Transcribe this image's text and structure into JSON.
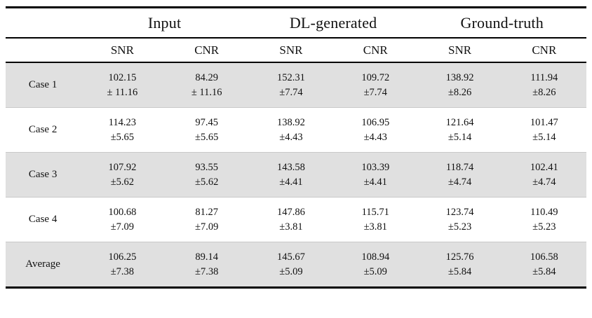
{
  "table": {
    "groups": [
      "Input",
      "DL-generated",
      "Ground-truth"
    ],
    "subheaders": [
      "SNR",
      "CNR",
      "SNR",
      "CNR",
      "SNR",
      "CNR"
    ],
    "rows": [
      {
        "label": "Case 1",
        "cells": [
          {
            "value": "102.15",
            "std": "± 11.16"
          },
          {
            "value": "84.29",
            "std": "± 11.16"
          },
          {
            "value": "152.31",
            "std": "±7.74"
          },
          {
            "value": "109.72",
            "std": "±7.74"
          },
          {
            "value": "138.92",
            "std": "±8.26"
          },
          {
            "value": "111.94",
            "std": "±8.26"
          }
        ]
      },
      {
        "label": "Case 2",
        "cells": [
          {
            "value": "114.23",
            "std": "±5.65"
          },
          {
            "value": "97.45",
            "std": "±5.65"
          },
          {
            "value": "138.92",
            "std": "±4.43"
          },
          {
            "value": "106.95",
            "std": "±4.43"
          },
          {
            "value": "121.64",
            "std": "±5.14"
          },
          {
            "value": "101.47",
            "std": "±5.14"
          }
        ]
      },
      {
        "label": "Case 3",
        "cells": [
          {
            "value": "107.92",
            "std": "±5.62"
          },
          {
            "value": "93.55",
            "std": "±5.62"
          },
          {
            "value": "143.58",
            "std": "±4.41"
          },
          {
            "value": "103.39",
            "std": "±4.41"
          },
          {
            "value": "118.74",
            "std": "±4.74"
          },
          {
            "value": "102.41",
            "std": "±4.74"
          }
        ]
      },
      {
        "label": "Case 4",
        "cells": [
          {
            "value": "100.68",
            "std": "±7.09"
          },
          {
            "value": "81.27",
            "std": "±7.09"
          },
          {
            "value": "147.86",
            "std": "±3.81"
          },
          {
            "value": "115.71",
            "std": "±3.81"
          },
          {
            "value": "123.74",
            "std": "±5.23"
          },
          {
            "value": "110.49",
            "std": "±5.23"
          }
        ]
      },
      {
        "label": "Average",
        "cells": [
          {
            "value": "106.25",
            "std": "±7.38"
          },
          {
            "value": "89.14",
            "std": "±7.38"
          },
          {
            "value": "145.67",
            "std": "±5.09"
          },
          {
            "value": "108.94",
            "std": "±5.09"
          },
          {
            "value": "125.76",
            "std": "±5.84"
          },
          {
            "value": "106.58",
            "std": "±5.84"
          }
        ]
      }
    ],
    "colors": {
      "shaded_row": "#e0e0e0",
      "rule": "#000000",
      "row_divider": "#c9c9c9"
    }
  },
  "chart_data": {
    "type": "table",
    "column_groups": [
      "Input",
      "DL-generated",
      "Ground-truth"
    ],
    "columns": [
      "Input SNR",
      "Input CNR",
      "DL-generated SNR",
      "DL-generated CNR",
      "Ground-truth SNR",
      "Ground-truth CNR"
    ],
    "row_labels": [
      "Case 1",
      "Case 2",
      "Case 3",
      "Case 4",
      "Average"
    ],
    "means": [
      [
        102.15,
        84.29,
        152.31,
        109.72,
        138.92,
        111.94
      ],
      [
        114.23,
        97.45,
        138.92,
        106.95,
        121.64,
        101.47
      ],
      [
        107.92,
        93.55,
        143.58,
        103.39,
        118.74,
        102.41
      ],
      [
        100.68,
        81.27,
        147.86,
        115.71,
        123.74,
        110.49
      ],
      [
        106.25,
        89.14,
        145.67,
        108.94,
        125.76,
        106.58
      ]
    ],
    "stds": [
      [
        11.16,
        11.16,
        7.74,
        7.74,
        8.26,
        8.26
      ],
      [
        5.65,
        5.65,
        4.43,
        4.43,
        5.14,
        5.14
      ],
      [
        5.62,
        5.62,
        4.41,
        4.41,
        4.74,
        4.74
      ],
      [
        7.09,
        7.09,
        3.81,
        3.81,
        5.23,
        5.23
      ],
      [
        7.38,
        7.38,
        5.09,
        5.09,
        5.84,
        5.84
      ]
    ]
  }
}
